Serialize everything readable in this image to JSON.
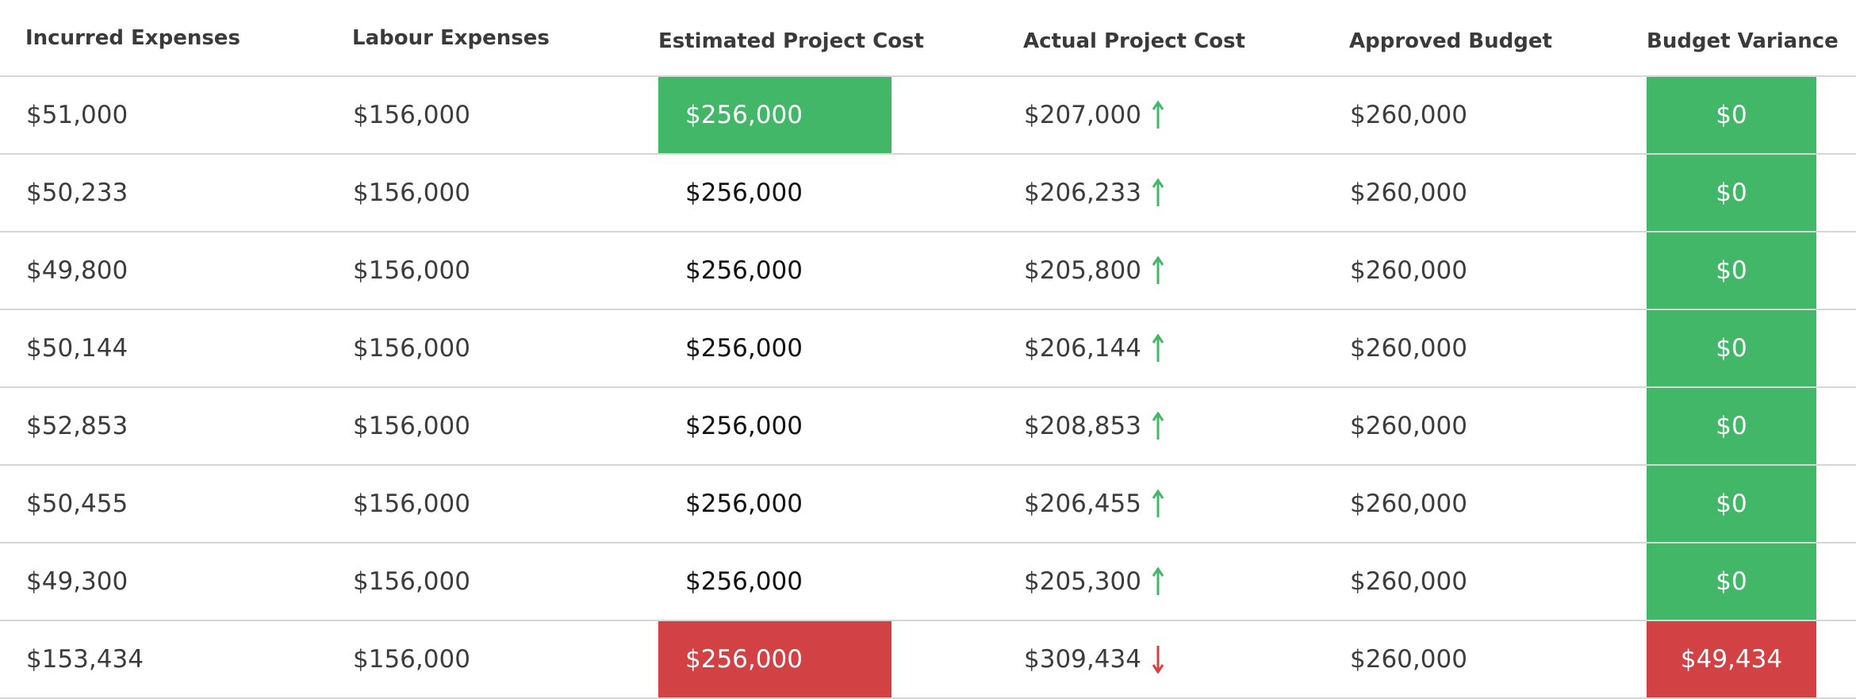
{
  "columns": {
    "incurred": "Incurred Expenses",
    "labour": "Labour Expenses",
    "estimated": "Estimated Project Cost",
    "actual": "Actual Project Cost",
    "approved": "Approved Budget",
    "variance": "Budget Variance"
  },
  "colors": {
    "positive": "#42b768",
    "negative": "#d24144",
    "border": "#d6d6d6"
  },
  "rows": [
    {
      "incurred": "$51,000",
      "labour": "$156,000",
      "estimated": "$256,000",
      "estimated_status": "positive",
      "actual": "$207,000",
      "trend": "up-arrow-icon",
      "approved": "$260,000",
      "variance": "$0",
      "variance_status": "positive"
    },
    {
      "incurred": "$50,233",
      "labour": "$156,000",
      "estimated": "$256,000",
      "estimated_status": "none",
      "actual": "$206,233",
      "trend": "up-arrow-icon",
      "approved": "$260,000",
      "variance": "$0",
      "variance_status": "positive"
    },
    {
      "incurred": "$49,800",
      "labour": "$156,000",
      "estimated": "$256,000",
      "estimated_status": "none",
      "actual": "$205,800",
      "trend": "up-arrow-icon",
      "approved": "$260,000",
      "variance": "$0",
      "variance_status": "positive"
    },
    {
      "incurred": "$50,144",
      "labour": "$156,000",
      "estimated": "$256,000",
      "estimated_status": "none",
      "actual": "$206,144",
      "trend": "up-arrow-icon",
      "approved": "$260,000",
      "variance": "$0",
      "variance_status": "positive"
    },
    {
      "incurred": "$52,853",
      "labour": "$156,000",
      "estimated": "$256,000",
      "estimated_status": "none",
      "actual": "$208,853",
      "trend": "up-arrow-icon",
      "approved": "$260,000",
      "variance": "$0",
      "variance_status": "positive"
    },
    {
      "incurred": "$50,455",
      "labour": "$156,000",
      "estimated": "$256,000",
      "estimated_status": "none",
      "actual": "$206,455",
      "trend": "up-arrow-icon",
      "approved": "$260,000",
      "variance": "$0",
      "variance_status": "positive"
    },
    {
      "incurred": "$49,300",
      "labour": "$156,000",
      "estimated": "$256,000",
      "estimated_status": "none",
      "actual": "$205,300",
      "trend": "up-arrow-icon",
      "approved": "$260,000",
      "variance": "$0",
      "variance_status": "positive"
    },
    {
      "incurred": "$153,434",
      "labour": "$156,000",
      "estimated": "$256,000",
      "estimated_status": "negative",
      "actual": "$309,434",
      "trend": "down-arrow-icon",
      "approved": "$260,000",
      "variance": "$49,434",
      "variance_status": "negative"
    }
  ]
}
